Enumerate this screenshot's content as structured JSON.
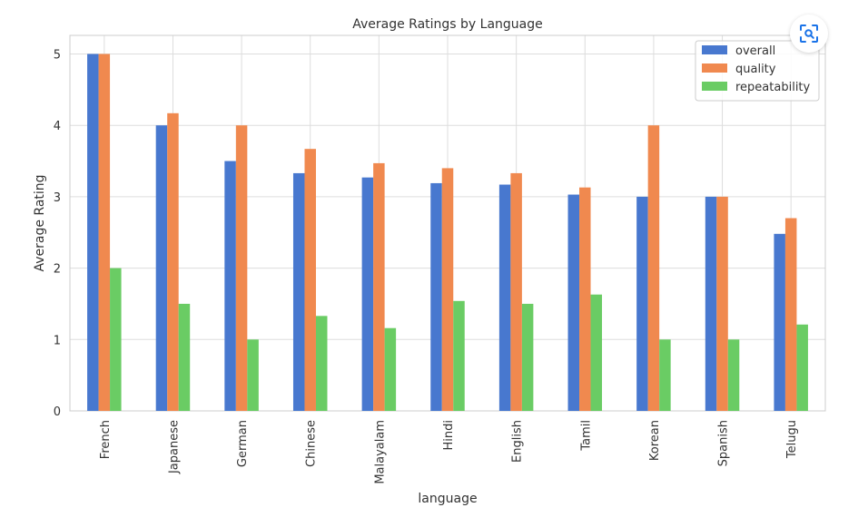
{
  "toolbar": {
    "lens_icon": "image-search-icon"
  },
  "chart_data": {
    "type": "bar",
    "title": "Average Ratings by Language",
    "xlabel": "language",
    "ylabel": "Average Rating",
    "categories": [
      "French",
      "Japanese",
      "German",
      "Chinese",
      "Malayalam",
      "Hindi",
      "English",
      "Tamil",
      "Korean",
      "Spanish",
      "Telugu"
    ],
    "series": [
      {
        "name": "overall",
        "color": "#4878cf",
        "values": [
          5.0,
          4.0,
          3.5,
          3.33,
          3.27,
          3.19,
          3.17,
          3.03,
          3.0,
          3.0,
          2.48
        ]
      },
      {
        "name": "quality",
        "color": "#f0894f",
        "values": [
          5.0,
          4.17,
          4.0,
          3.67,
          3.47,
          3.4,
          3.33,
          3.13,
          4.0,
          3.0,
          2.7
        ]
      },
      {
        "name": "repeatability",
        "color": "#6acc64",
        "values": [
          2.0,
          1.5,
          1.0,
          1.33,
          1.16,
          1.54,
          1.5,
          1.63,
          1.0,
          1.0,
          1.21
        ]
      }
    ],
    "ylim": [
      0,
      5.25
    ],
    "yticks": [
      0,
      1,
      2,
      3,
      4,
      5
    ],
    "grid": true,
    "legend_position": "top-right"
  }
}
